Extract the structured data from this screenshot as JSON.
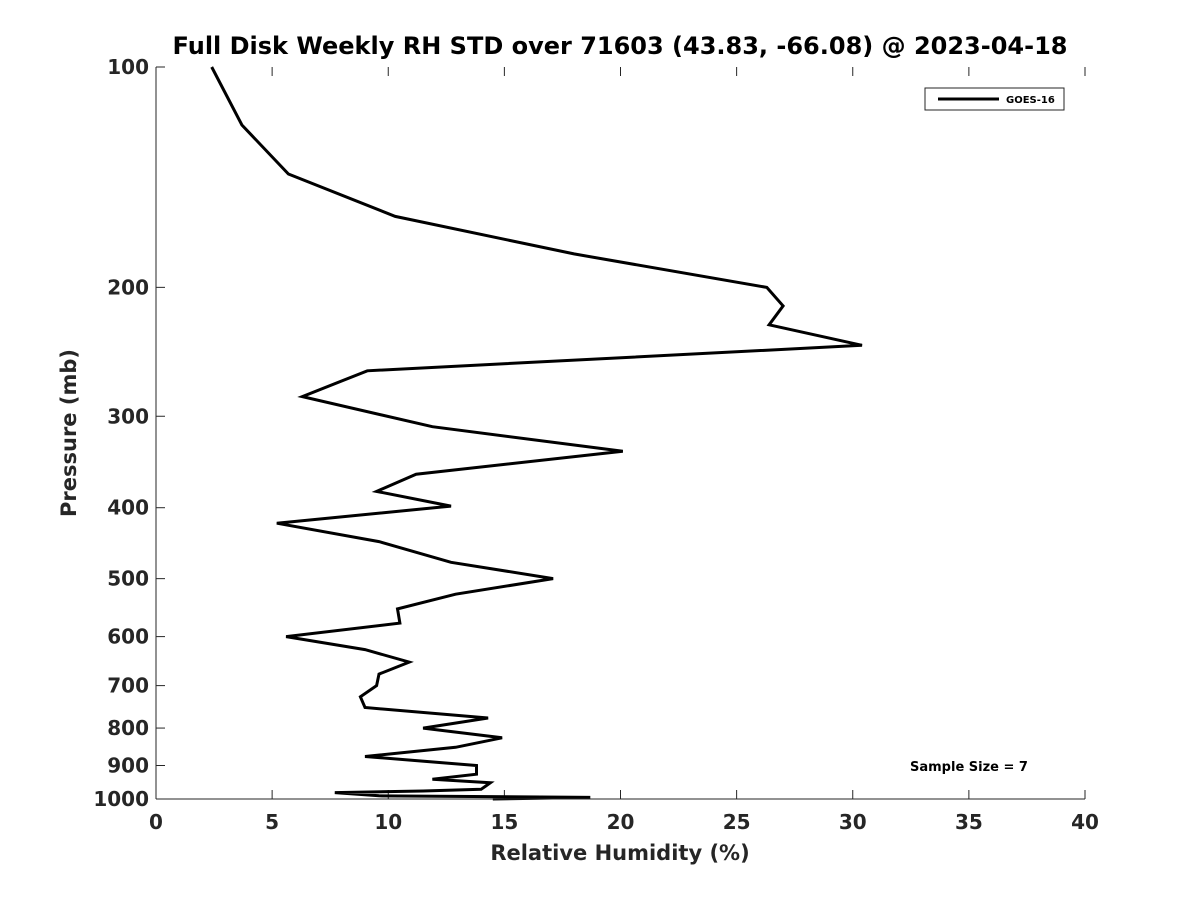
{
  "chart_data": {
    "type": "line",
    "title": "Full Disk Weekly RH STD over 71603 (43.83, -66.08) @ 2023-04-18",
    "xlabel": "Relative Humidity (%)",
    "ylabel": "Pressure (mb)",
    "xlim": [
      0,
      40
    ],
    "ylim": [
      100,
      1000
    ],
    "y_scale": "log",
    "y_reversed": true,
    "grid": false,
    "legend_position": "top-right",
    "x_ticks": [
      "0",
      "5",
      "10",
      "15",
      "20",
      "25",
      "30",
      "35",
      "40"
    ],
    "y_ticks": [
      "100",
      "200",
      "300",
      "400",
      "500",
      "600",
      "700",
      "800",
      "900",
      "1000"
    ],
    "series": [
      {
        "name": "GOES-16",
        "color": "#000000",
        "points": [
          [
            2.4,
            100
          ],
          [
            3.7,
            120
          ],
          [
            5.7,
            140
          ],
          [
            10.3,
            160
          ],
          [
            18.0,
            180
          ],
          [
            26.3,
            200
          ],
          [
            27.0,
            212
          ],
          [
            26.4,
            225
          ],
          [
            30.4,
            240
          ],
          [
            9.1,
            260
          ],
          [
            6.3,
            282
          ],
          [
            11.9,
            310
          ],
          [
            20.1,
            335
          ],
          [
            11.2,
            360
          ],
          [
            9.5,
            380
          ],
          [
            12.7,
            398
          ],
          [
            5.2,
            420
          ],
          [
            9.6,
            445
          ],
          [
            12.7,
            475
          ],
          [
            17.1,
            500
          ],
          [
            12.9,
            525
          ],
          [
            10.4,
            550
          ],
          [
            10.5,
            575
          ],
          [
            5.6,
            600
          ],
          [
            9.0,
            625
          ],
          [
            10.9,
            650
          ],
          [
            9.6,
            675
          ],
          [
            9.5,
            700
          ],
          [
            8.8,
            725
          ],
          [
            9.0,
            750
          ],
          [
            14.3,
            775
          ],
          [
            11.5,
            800
          ],
          [
            14.9,
            825
          ],
          [
            12.9,
            850
          ],
          [
            9.0,
            875
          ],
          [
            13.8,
            900
          ],
          [
            13.8,
            925
          ],
          [
            11.9,
            940
          ],
          [
            14.4,
            950
          ],
          [
            14.2,
            960
          ],
          [
            14.0,
            970
          ],
          [
            11.5,
            975
          ],
          [
            7.7,
            980
          ],
          [
            9.6,
            990
          ],
          [
            18.7,
            995
          ],
          [
            14.5,
            1000
          ]
        ]
      }
    ],
    "annotation": "Sample Size = 7"
  }
}
